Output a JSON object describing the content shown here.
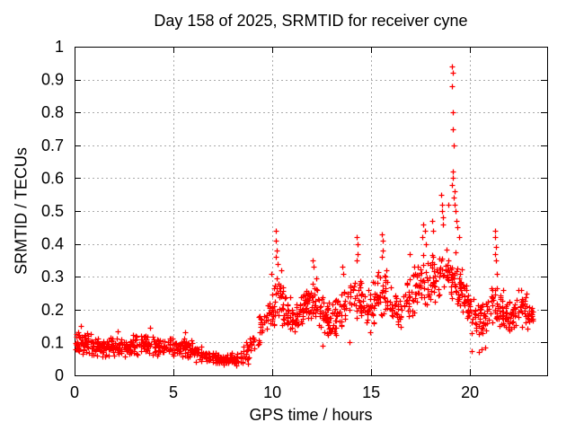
{
  "page": {
    "background": "#ffffff"
  },
  "chart_data": {
    "type": "scatter",
    "title": "Day 158 of 2025, SRMTID for receiver cyne",
    "xlabel": "GPS time / hours",
    "ylabel": "SRMTID / TECUs",
    "xlim": [
      0,
      23.9
    ],
    "ylim": [
      0,
      1
    ],
    "xticks": [
      0,
      5,
      10,
      15,
      20
    ],
    "yticks": [
      0,
      0.1,
      0.2,
      0.3,
      0.4,
      0.5,
      0.6,
      0.7,
      0.8,
      0.9,
      1
    ],
    "ytick_labels": [
      "0",
      "0.1",
      "0.2",
      "0.3",
      "0.4",
      "0.5",
      "0.6",
      "0.7",
      "0.8",
      "0.9",
      "1"
    ],
    "grid": {
      "show": true,
      "color": "#ababab",
      "style": "dotted"
    },
    "axis_color": "#000000",
    "background": "#ffffff",
    "marker": {
      "shape": "plus",
      "color": "#ff0000",
      "size": 7
    },
    "legend": "none",
    "series": [
      {
        "name": "SRMTID",
        "points_per_hour": 58,
        "time_range": [
          0.02,
          23.2
        ],
        "seed": 158,
        "band_profile": {
          "hours": [
            0,
            0.5,
            1,
            1.5,
            2,
            2.5,
            3,
            3.5,
            4,
            4.5,
            5,
            5.5,
            6,
            6.5,
            7,
            7.5,
            8,
            8.5,
            9,
            9.5,
            10,
            10.3,
            10.7,
            11,
            11.4,
            11.8,
            12.1,
            12.5,
            12.9,
            13.3,
            13.7,
            14,
            14.3,
            14.7,
            15,
            15.3,
            15.6,
            16,
            16.4,
            16.8,
            17.2,
            17.6,
            18,
            18.4,
            18.8,
            19.1,
            19.4,
            19.7,
            20,
            20.4,
            20.8,
            21.2,
            21.6,
            22,
            22.4,
            22.8,
            23.2
          ],
          "center": [
            0.095,
            0.1,
            0.09,
            0.085,
            0.09,
            0.085,
            0.09,
            0.095,
            0.09,
            0.085,
            0.085,
            0.09,
            0.075,
            0.06,
            0.055,
            0.05,
            0.05,
            0.06,
            0.1,
            0.16,
            0.2,
            0.24,
            0.19,
            0.16,
            0.19,
            0.22,
            0.23,
            0.19,
            0.16,
            0.19,
            0.22,
            0.24,
            0.25,
            0.2,
            0.21,
            0.24,
            0.26,
            0.21,
            0.19,
            0.23,
            0.26,
            0.29,
            0.3,
            0.31,
            0.32,
            0.3,
            0.27,
            0.23,
            0.19,
            0.16,
            0.19,
            0.21,
            0.19,
            0.18,
            0.19,
            0.2,
            0.18
          ],
          "spread": [
            0.035,
            0.04,
            0.035,
            0.03,
            0.035,
            0.03,
            0.035,
            0.04,
            0.035,
            0.03,
            0.03,
            0.035,
            0.03,
            0.025,
            0.02,
            0.018,
            0.02,
            0.03,
            0.05,
            0.06,
            0.07,
            0.08,
            0.06,
            0.055,
            0.06,
            0.065,
            0.07,
            0.06,
            0.05,
            0.06,
            0.07,
            0.075,
            0.08,
            0.065,
            0.07,
            0.075,
            0.08,
            0.07,
            0.06,
            0.07,
            0.08,
            0.09,
            0.09,
            0.09,
            0.1,
            0.1,
            0.09,
            0.08,
            0.07,
            0.065,
            0.06,
            0.07,
            0.055,
            0.05,
            0.055,
            0.055,
            0.045
          ]
        },
        "outliers": [
          [
            0.3,
            0.15
          ],
          [
            2.2,
            0.135
          ],
          [
            3.8,
            0.145
          ],
          [
            5.6,
            0.13
          ],
          [
            8.75,
            0.035
          ],
          [
            9.95,
            0.31
          ],
          [
            10.18,
            0.44
          ],
          [
            10.2,
            0.41
          ],
          [
            10.22,
            0.38
          ],
          [
            10.17,
            0.36
          ],
          [
            10.25,
            0.34
          ],
          [
            10.45,
            0.32
          ],
          [
            12.05,
            0.35
          ],
          [
            12.1,
            0.33
          ],
          [
            12.55,
            0.09
          ],
          [
            13.55,
            0.33
          ],
          [
            13.6,
            0.31
          ],
          [
            13.9,
            0.1
          ],
          [
            14.28,
            0.42
          ],
          [
            14.3,
            0.4
          ],
          [
            14.33,
            0.37
          ],
          [
            14.25,
            0.35
          ],
          [
            15.55,
            0.43
          ],
          [
            15.58,
            0.41
          ],
          [
            15.6,
            0.38
          ],
          [
            15.52,
            0.36
          ],
          [
            16.95,
            0.37
          ],
          [
            17.65,
            0.46
          ],
          [
            17.7,
            0.44
          ],
          [
            17.6,
            0.42
          ],
          [
            17.75,
            0.4
          ],
          [
            18.1,
            0.47
          ],
          [
            18.15,
            0.44
          ],
          [
            18.55,
            0.55
          ],
          [
            18.6,
            0.52
          ],
          [
            18.58,
            0.5
          ],
          [
            18.62,
            0.48
          ],
          [
            18.65,
            0.46
          ],
          [
            18.9,
            0.52
          ],
          [
            19.1,
            0.94
          ],
          [
            19.12,
            0.92
          ],
          [
            19.08,
            0.88
          ],
          [
            19.15,
            0.8
          ],
          [
            19.13,
            0.75
          ],
          [
            19.18,
            0.7
          ],
          [
            19.12,
            0.62
          ],
          [
            19.15,
            0.6
          ],
          [
            19.1,
            0.58
          ],
          [
            19.2,
            0.56
          ],
          [
            19.16,
            0.54
          ],
          [
            19.22,
            0.52
          ],
          [
            19.25,
            0.5
          ],
          [
            19.3,
            0.47
          ],
          [
            19.35,
            0.45
          ],
          [
            19.45,
            0.42
          ],
          [
            19.5,
            0.31
          ],
          [
            20.1,
            0.075
          ],
          [
            20.45,
            0.07
          ],
          [
            20.6,
            0.08
          ],
          [
            20.75,
            0.085
          ],
          [
            21.25,
            0.44
          ],
          [
            21.28,
            0.42
          ],
          [
            21.3,
            0.39
          ],
          [
            21.27,
            0.37
          ],
          [
            21.33,
            0.35
          ],
          [
            21.35,
            0.31
          ],
          [
            22.6,
            0.26
          ],
          [
            22.85,
            0.25
          ]
        ]
      }
    ]
  }
}
